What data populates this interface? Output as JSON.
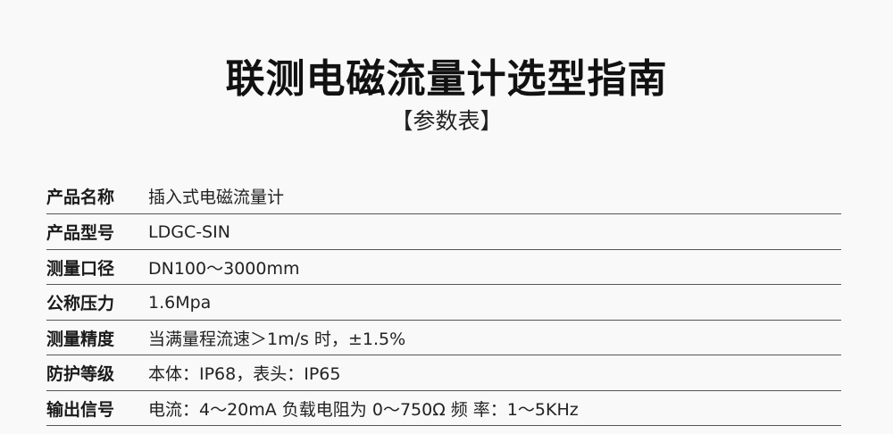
{
  "header": {
    "title": "联测电磁流量计选型指南",
    "subtitle": "【参数表】"
  },
  "specs": [
    {
      "label": "产品名称",
      "value": "插入式电磁流量计"
    },
    {
      "label": "产品型号",
      "value": "LDGC-SIN"
    },
    {
      "label": "测量口径",
      "value": "DN100～3000mm"
    },
    {
      "label": "公称压力",
      "value": "1.6Mpa"
    },
    {
      "label": "测量精度",
      "value": "当满量程流速＞1m/s 时，±1.5%"
    },
    {
      "label": "防护等级",
      "value": "本体：IP68，表头：IP65"
    },
    {
      "label": "输出信号",
      "value": "电流：4～20mA 负载电阻为 0～750Ω 频 率：1～5KHz"
    }
  ]
}
